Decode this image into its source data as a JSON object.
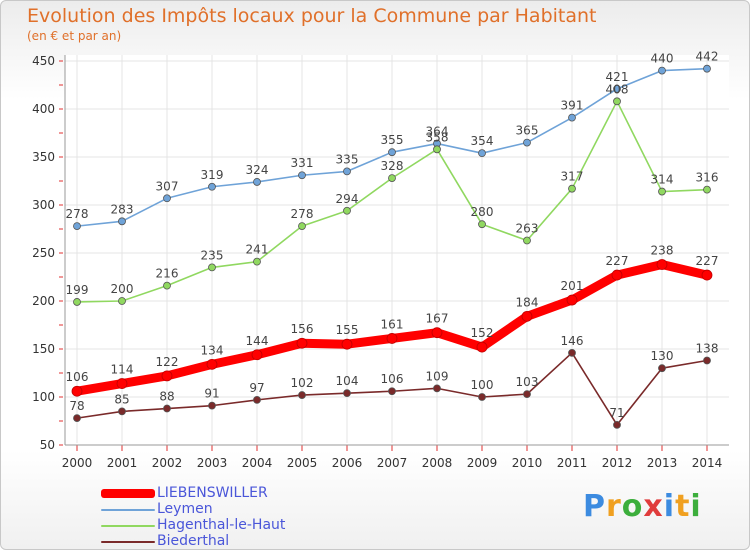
{
  "header": {
    "title": "Evolution des Impôts locaux pour la Commune par Habitant",
    "subtitle": "(en € et par an)"
  },
  "brand": {
    "text": "Proxiti",
    "colors": [
      "#3c8be0",
      "#f0a020",
      "#3cae3c",
      "#e03c3c",
      "#3c8be0",
      "#f0a020",
      "#3cae3c"
    ]
  },
  "chart_data": {
    "type": "line",
    "title": "Evolution des Impôts locaux pour la Commune par Habitant",
    "ylabel": "(en € et par an)",
    "xlabel": "",
    "ylim": [
      50,
      450
    ],
    "yticks": [
      "50",
      "100",
      "150",
      "200",
      "250",
      "300",
      "350",
      "400",
      "450"
    ],
    "categories": [
      "2000",
      "2001",
      "2002",
      "2003",
      "2004",
      "2005",
      "2006",
      "2007",
      "2008",
      "2009",
      "2010",
      "2011",
      "2012",
      "2013",
      "2014"
    ],
    "grid": true,
    "legend_position": "bottom-left",
    "series": [
      {
        "name": "LIEBENSWILLER",
        "color": "#ff0000",
        "values": [
          106,
          114,
          122,
          134,
          144,
          156,
          155,
          161,
          167,
          152,
          184,
          201,
          227,
          238,
          227
        ]
      },
      {
        "name": "Leymen",
        "color": "#6fa3d8",
        "values": [
          278,
          283,
          307,
          319,
          324,
          331,
          335,
          355,
          364,
          354,
          365,
          391,
          421,
          440,
          442
        ]
      },
      {
        "name": "Hagenthal-le-Haut",
        "color": "#90d860",
        "values": [
          199,
          200,
          216,
          235,
          241,
          278,
          294,
          328,
          358,
          280,
          263,
          317,
          408,
          314,
          316
        ]
      },
      {
        "name": "Biederthal",
        "color": "#7a2a2a",
        "values": [
          78,
          85,
          88,
          91,
          97,
          102,
          104,
          106,
          109,
          100,
          103,
          146,
          71,
          130,
          138
        ]
      }
    ]
  }
}
